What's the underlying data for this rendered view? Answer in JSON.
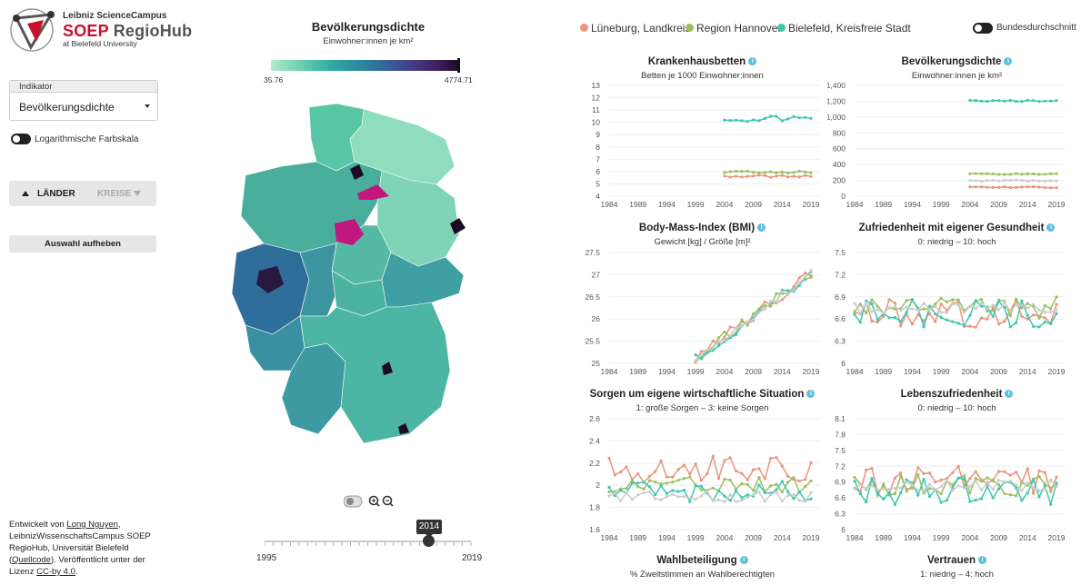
{
  "app": {
    "logo_line1": "Leibniz ScienceCampus",
    "logo_line2_a": "SOEP",
    "logo_line2_b": "RegioHub",
    "logo_line3": "at Bielefeld University"
  },
  "sidebar": {
    "indicator_header": "Indikator",
    "indicator_value": "Bevölkerungsdichte",
    "log_scale_label": "Logarithmische Farbskala",
    "level_laender": "LÄNDER",
    "level_kreise": "KREISE",
    "clear_button": "Auswahl aufheben",
    "credits_1": "Entwickelt von ",
    "credits_author": "Long Nguyen",
    "credits_2": ", LeibnizWissenschaftsCampus SOEP RegioHub, Universität Bielefeld (",
    "credits_source": "Quellcode",
    "credits_3": "). Veröffentlicht unter der Lizenz ",
    "credits_license": "CC-by 4.0",
    "credits_4": "."
  },
  "map": {
    "title": "Bevölkerungsdichte",
    "subtitle": "Einwohner:innen je km²",
    "scale_min": "35.76",
    "scale_max": "4774.71",
    "year_label": "2014",
    "year_min": "1995",
    "year_max": "2019",
    "year_value": 2014
  },
  "legend": {
    "items": [
      {
        "label": "Lüneburg, Landkreis",
        "color": "#e8957a"
      },
      {
        "label": "Region Hannover",
        "color": "#9bbf5f"
      },
      {
        "label": "Bielefeld, Kreisfreie Stadt",
        "color": "#3cc7b0"
      }
    ],
    "avg_label": "Bundesdurchschnitt",
    "avg_color": "#cccccc"
  },
  "charts": [
    {
      "title": "Krankenhausbetten",
      "subtitle": "Betten je 1000 Einwohner:innen",
      "yticks": [
        "13",
        "12",
        "11",
        "10",
        "9",
        "8",
        "7",
        "6",
        "5",
        "4"
      ],
      "xticks": [
        "1984",
        "1989",
        "1994",
        "1999",
        "2004",
        "2009",
        "2014",
        "2019"
      ]
    },
    {
      "title": "Bevölkerungsdichte",
      "subtitle": "Einwohner:innen je km²",
      "yticks": [
        "1,400",
        "1,200",
        "1,000",
        "800",
        "600",
        "400",
        "200",
        "0"
      ],
      "xticks": [
        "1984",
        "1989",
        "1994",
        "1999",
        "2004",
        "2009",
        "2014",
        "2019"
      ]
    },
    {
      "title": "Body-Mass-Index (BMI)",
      "subtitle": "Gewicht [kg] / Größe [m]²",
      "yticks": [
        "27.5",
        "27",
        "26.5",
        "26",
        "25.5",
        "25"
      ],
      "xticks": [
        "1984",
        "1989",
        "1994",
        "1999",
        "2004",
        "2009",
        "2014",
        "2019"
      ]
    },
    {
      "title": "Zufriedenheit mit eigener Gesundheit",
      "subtitle": "0: niedrig – 10: hoch",
      "yticks": [
        "7.5",
        "7.2",
        "6.9",
        "6.6",
        "6.3",
        "6"
      ],
      "xticks": [
        "1984",
        "1989",
        "1994",
        "1999",
        "2004",
        "2009",
        "2014",
        "2019"
      ]
    },
    {
      "title": "Sorgen um eigene wirtschaftliche Situation",
      "subtitle": "1: große Sorgen – 3: keine Sorgen",
      "yticks": [
        "2.6",
        "2.4",
        "2.2",
        "2",
        "1.8",
        "1.6"
      ],
      "xticks": [
        "1984",
        "1989",
        "1994",
        "1999",
        "2004",
        "2009",
        "2014",
        "2019"
      ]
    },
    {
      "title": "Lebenszufriedenheit",
      "subtitle": "0: niedrig – 10: hoch",
      "yticks": [
        "8.1",
        "7.8",
        "7.5",
        "7.2",
        "6.9",
        "6.6",
        "6.3",
        "6"
      ],
      "xticks": [
        "1984",
        "1989",
        "1994",
        "1999",
        "2004",
        "2009",
        "2014",
        "2019"
      ]
    },
    {
      "title": "Wahlbeteiligung",
      "subtitle": "% Zweitstimmen an Wahlberechtigten",
      "yticks": [],
      "xticks": []
    },
    {
      "title": "Vertrauen",
      "subtitle": "1: niedrig – 4: hoch",
      "yticks": [],
      "xticks": []
    }
  ]
}
